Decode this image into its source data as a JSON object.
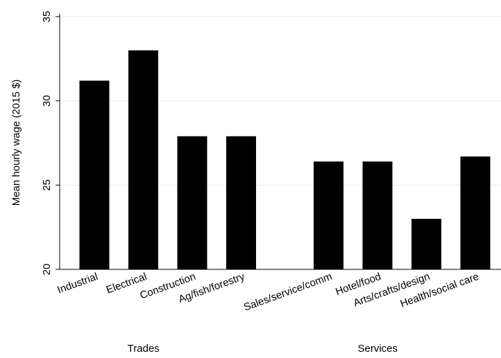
{
  "chart_data": {
    "type": "bar",
    "y_label": "Mean hourly wage (2015 $)",
    "groups": [
      {
        "name": "Trades",
        "categories": [
          "Industrial",
          "Electrical",
          "Construction",
          "Ag/fish/forestry"
        ],
        "values": [
          31.2,
          33.0,
          27.9,
          27.9
        ]
      },
      {
        "name": "Services",
        "categories": [
          "Sales/service/comm",
          "Hotel/food",
          "Arts/crafts/design",
          "Health/social care"
        ],
        "values": [
          26.4,
          26.4,
          23.0,
          26.7
        ]
      }
    ],
    "color": "#000000",
    "ylim": [
      20,
      35
    ],
    "yticks": [
      20,
      25,
      30,
      35
    ],
    "grid": true
  }
}
